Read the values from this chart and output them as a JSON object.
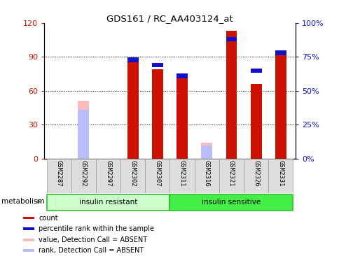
{
  "title": "GDS161 / RC_AA403124_at",
  "samples": [
    "GSM2287",
    "GSM2292",
    "GSM2297",
    "GSM2302",
    "GSM2307",
    "GSM2311",
    "GSM2316",
    "GSM2321",
    "GSM2326",
    "GSM2331"
  ],
  "count_values": [
    0,
    0,
    0,
    89,
    79,
    72,
    0,
    113,
    66,
    96
  ],
  "rank_values": [
    0,
    0,
    0,
    73,
    69,
    61,
    0,
    88,
    65,
    78
  ],
  "absent_value": [
    0,
    51,
    0,
    0,
    0,
    0,
    14,
    0,
    0,
    0
  ],
  "absent_rank": [
    0,
    36,
    0,
    0,
    0,
    0,
    10,
    0,
    0,
    0
  ],
  "ylim_left": [
    0,
    120
  ],
  "ylim_right": [
    0,
    100
  ],
  "yticks_left": [
    0,
    30,
    60,
    90,
    120
  ],
  "ytick_labels_left": [
    "0",
    "30",
    "60",
    "90",
    "120"
  ],
  "yticks_right": [
    0,
    25,
    50,
    75,
    100
  ],
  "ytick_labels_right": [
    "0%",
    "25%",
    "50%",
    "75%",
    "100%"
  ],
  "color_count": "#cc1100",
  "color_rank": "#1111cc",
  "color_absent_value": "#ffbbbb",
  "color_absent_rank": "#bbbbff",
  "group1_label": "insulin resistant",
  "group2_label": "insulin sensitive",
  "group1_color": "#ccffcc",
  "group2_color": "#44ee44",
  "metabolism_label": "metabolism",
  "legend": [
    {
      "label": "count",
      "color": "#cc1100"
    },
    {
      "label": "percentile rank within the sample",
      "color": "#1111cc"
    },
    {
      "label": "value, Detection Call = ABSENT",
      "color": "#ffbbbb"
    },
    {
      "label": "rank, Detection Call = ABSENT",
      "color": "#bbbbff"
    }
  ],
  "figsize": [
    4.85,
    3.66
  ],
  "dpi": 100
}
